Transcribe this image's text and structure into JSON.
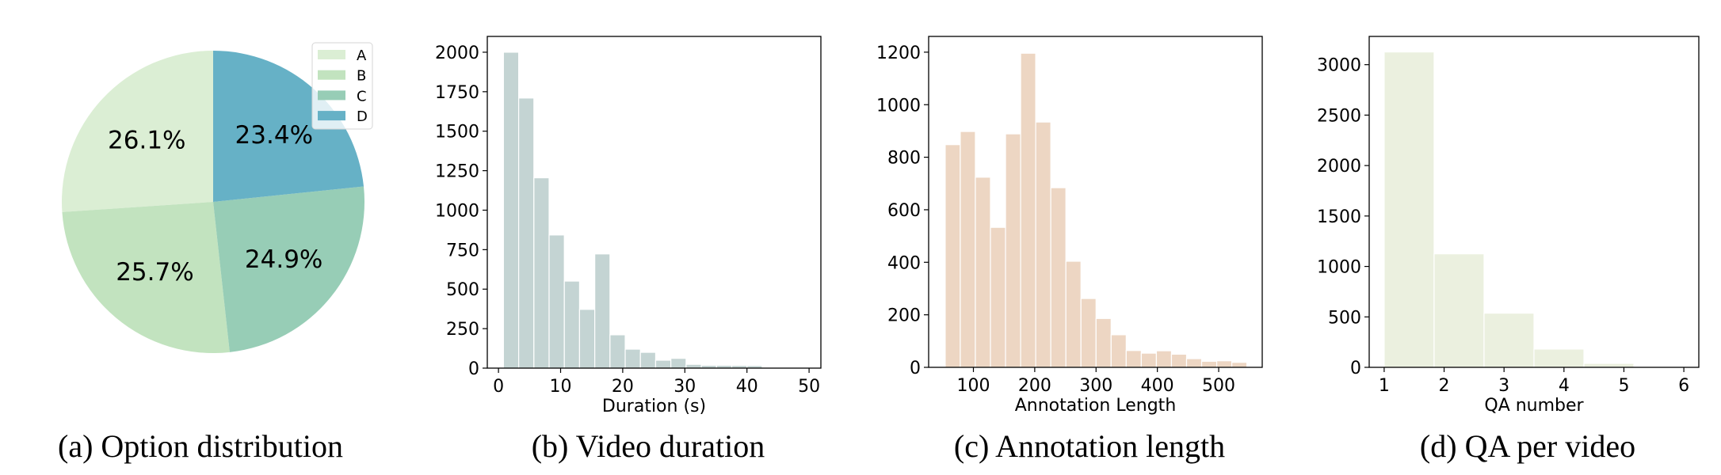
{
  "chart_data": [
    {
      "type": "pie",
      "caption": "(a) Option distribution",
      "labels": [
        "A",
        "B",
        "C",
        "D"
      ],
      "values": [
        26.1,
        25.7,
        24.9,
        23.4
      ],
      "value_labels": [
        "26.1%",
        "25.7%",
        "24.9%",
        "23.4%"
      ],
      "colors": [
        "#dbeed4",
        "#c2e3bf",
        "#97cdb6",
        "#66b1c6"
      ],
      "start_angle": 90,
      "direction": "counterclockwise",
      "legend": "top-right"
    },
    {
      "type": "bar",
      "subtype": "histogram",
      "caption": "(b) Video duration",
      "xlabel": "Duration (s)",
      "ylabel": "",
      "bin_start": 0.8,
      "bin_width": 2.45,
      "values": [
        2000,
        1710,
        1205,
        843,
        551,
        372,
        723,
        211,
        120,
        100,
        50,
        62,
        24,
        18,
        18,
        17,
        16
      ],
      "xlim": [
        -1.8,
        51.9
      ],
      "ylim": [
        0,
        2100
      ],
      "xticks": [
        0,
        10,
        20,
        30,
        40,
        50
      ],
      "yticks": [
        0,
        250,
        500,
        750,
        1000,
        1250,
        1500,
        1750,
        2000
      ],
      "color": "#c4d4d3",
      "grid": false
    },
    {
      "type": "bar",
      "subtype": "histogram",
      "caption": "(c) Annotation length",
      "xlabel": "Annotation Length",
      "ylabel": "",
      "bin_start": 54,
      "bin_width": 24.6,
      "values": [
        848,
        898,
        724,
        533,
        889,
        1196,
        934,
        684,
        404,
        262,
        186,
        124,
        64,
        54,
        63,
        50,
        33,
        23,
        25,
        19
      ],
      "xlim": [
        27,
        571
      ],
      "ylim": [
        0,
        1260
      ],
      "xticks": [
        100,
        200,
        300,
        400,
        500
      ],
      "yticks": [
        0,
        200,
        400,
        600,
        800,
        1000,
        1200
      ],
      "color": "#edd6c3",
      "grid": false
    },
    {
      "type": "bar",
      "subtype": "histogram",
      "caption": "(d) QA per video",
      "xlabel": "QA number",
      "ylabel": "",
      "bin_start": 1,
      "bin_width": 0.8333,
      "values": [
        3126,
        1125,
        537,
        181,
        39,
        0
      ],
      "xlim": [
        0.75,
        6.25
      ],
      "ylim": [
        0,
        3280
      ],
      "xticks": [
        1,
        2,
        3,
        4,
        5,
        6
      ],
      "yticks": [
        0,
        500,
        1000,
        1500,
        2000,
        2500,
        3000
      ],
      "color": "#ebf0df",
      "grid": false
    }
  ]
}
